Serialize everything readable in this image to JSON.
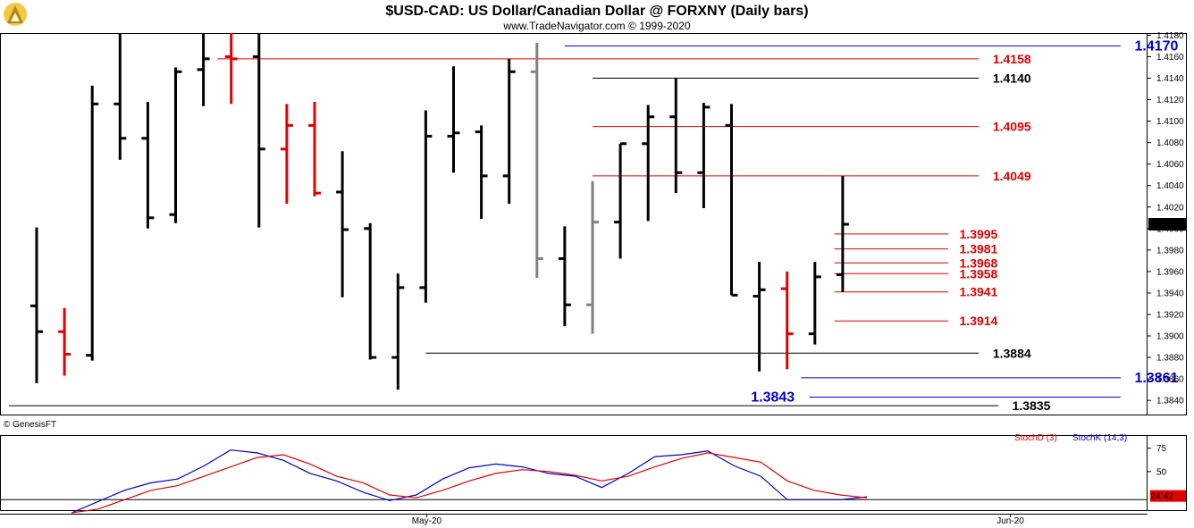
{
  "header": {
    "title": "$USD-CAD:  US Dollar/Canadian Dollar @ FORXNY  (Daily bars)",
    "subtitle": "www.TradeNavigator.com © 1999-2020"
  },
  "copyright": "© GenesisFT",
  "colors": {
    "up": "#000000",
    "down": "#e00000",
    "neutral": "#808080",
    "blue": "#0000cc",
    "red_line": "#e00000",
    "stoch_k": "#0000cc",
    "stoch_d": "#e00000",
    "last_price_bg": "#000000",
    "stoch_value_bg": "#e00000"
  },
  "chart_data": [
    {
      "type": "ohlc",
      "title": "$USD-CAD:  US Dollar/Canadian Dollar @ FORXNY  (Daily bars)",
      "ylim": [
        1.3826,
        1.4182
      ],
      "y_ticks": [
        "1.3840",
        "1.3860",
        "1.3880",
        "1.3900",
        "1.3920",
        "1.3940",
        "1.3960",
        "1.3980",
        "1.4000",
        "1.4020",
        "1.4040",
        "1.4060",
        "1.4080",
        "1.4100",
        "1.4120",
        "1.4140",
        "1.4160",
        "1.4180"
      ],
      "last_price": "1.4004",
      "x_labels": [
        {
          "label": "May-20",
          "index": 14
        },
        {
          "label": "Jun-20",
          "index": 35
        }
      ],
      "bars": [
        {
          "o": 1.3928,
          "h": 1.4001,
          "l": 1.3856,
          "c": 1.3904,
          "color": "black"
        },
        {
          "o": 1.3904,
          "h": 1.3926,
          "l": 1.3863,
          "c": 1.3883,
          "color": "red"
        },
        {
          "o": 1.3882,
          "h": 1.4133,
          "l": 1.3877,
          "c": 1.4116,
          "color": "black"
        },
        {
          "o": 1.4116,
          "h": 1.4182,
          "l": 1.4064,
          "c": 1.4084,
          "color": "black"
        },
        {
          "o": 1.4084,
          "h": 1.4118,
          "l": 1.4,
          "c": 1.401,
          "color": "black"
        },
        {
          "o": 1.4013,
          "h": 1.415,
          "l": 1.4005,
          "c": 1.4146,
          "color": "black"
        },
        {
          "o": 1.4148,
          "h": 1.4182,
          "l": 1.4114,
          "c": 1.4158,
          "color": "black"
        },
        {
          "o": 1.416,
          "h": 1.4182,
          "l": 1.4116,
          "c": 1.4158,
          "color": "red"
        },
        {
          "o": 1.416,
          "h": 1.4182,
          "l": 1.4001,
          "c": 1.4074,
          "color": "black"
        },
        {
          "o": 1.4074,
          "h": 1.4116,
          "l": 1.4023,
          "c": 1.4096,
          "color": "red"
        },
        {
          "o": 1.4096,
          "h": 1.4118,
          "l": 1.403,
          "c": 1.4033,
          "color": "red"
        },
        {
          "o": 1.4034,
          "h": 1.4072,
          "l": 1.3936,
          "c": 1.3999,
          "color": "black"
        },
        {
          "o": 1.4,
          "h": 1.4005,
          "l": 1.3878,
          "c": 1.388,
          "color": "black"
        },
        {
          "o": 1.388,
          "h": 1.3958,
          "l": 1.385,
          "c": 1.3945,
          "color": "black"
        },
        {
          "o": 1.3945,
          "h": 1.411,
          "l": 1.3931,
          "c": 1.4086,
          "color": "black"
        },
        {
          "o": 1.4086,
          "h": 1.4151,
          "l": 1.4052,
          "c": 1.4089,
          "color": "black"
        },
        {
          "o": 1.409,
          "h": 1.4096,
          "l": 1.4009,
          "c": 1.4049,
          "color": "black"
        },
        {
          "o": 1.4049,
          "h": 1.4158,
          "l": 1.4023,
          "c": 1.4146,
          "color": "black"
        },
        {
          "o": 1.4146,
          "h": 1.4173,
          "l": 1.3954,
          "c": 1.3972,
          "color": "gray"
        },
        {
          "o": 1.3972,
          "h": 1.4002,
          "l": 1.3909,
          "c": 1.3929,
          "color": "black"
        },
        {
          "o": 1.3929,
          "h": 1.4044,
          "l": 1.3902,
          "c": 1.4006,
          "color": "gray"
        },
        {
          "o": 1.4006,
          "h": 1.4079,
          "l": 1.3972,
          "c": 1.4079,
          "color": "black"
        },
        {
          "o": 1.4079,
          "h": 1.4115,
          "l": 1.4007,
          "c": 1.4104,
          "color": "black"
        },
        {
          "o": 1.4104,
          "h": 1.414,
          "l": 1.4033,
          "c": 1.4052,
          "color": "black"
        },
        {
          "o": 1.4052,
          "h": 1.4117,
          "l": 1.4019,
          "c": 1.4113,
          "color": "black"
        },
        {
          "o": 1.4096,
          "h": 1.4116,
          "l": 1.3938,
          "c": 1.3938,
          "color": "black"
        },
        {
          "o": 1.3937,
          "h": 1.3969,
          "l": 1.3867,
          "c": 1.3943,
          "color": "black"
        },
        {
          "o": 1.3944,
          "h": 1.396,
          "l": 1.3869,
          "c": 1.3902,
          "color": "red"
        },
        {
          "o": 1.3902,
          "h": 1.3969,
          "l": 1.3892,
          "c": 1.3955,
          "color": "black"
        },
        {
          "o": 1.3957,
          "h": 1.4049,
          "l": 1.3941,
          "c": 1.4004,
          "color": "black"
        }
      ],
      "levels": [
        {
          "value": 1.417,
          "label": "1.4170",
          "color": "blue",
          "x0": 19,
          "x1": 39,
          "label_pos": 39.5,
          "big": true
        },
        {
          "value": 1.4158,
          "label": "1.4158",
          "color": "red",
          "x0": 6.5,
          "x1": 33.9,
          "label_pos": 34.4,
          "big": false
        },
        {
          "value": 1.414,
          "label": "1.4140",
          "color": "black",
          "x0": 20,
          "x1": 33.9,
          "label_pos": 34.4,
          "big": false
        },
        {
          "value": 1.4095,
          "label": "1.4095",
          "color": "red",
          "x0": 20,
          "x1": 33.9,
          "label_pos": 34.4,
          "big": false
        },
        {
          "value": 1.4049,
          "label": "1.4049",
          "color": "red",
          "x0": 20,
          "x1": 33.9,
          "label_pos": 34.4,
          "big": false
        },
        {
          "value": 1.3995,
          "label": "1.3995",
          "color": "red",
          "x0": 28.7,
          "x1": 32.8,
          "label_pos": 33.2,
          "big": false
        },
        {
          "value": 1.3981,
          "label": "1.3981",
          "color": "red",
          "x0": 28.7,
          "x1": 32.8,
          "label_pos": 33.2,
          "big": false
        },
        {
          "value": 1.3968,
          "label": "1.3968",
          "color": "red",
          "x0": 28.7,
          "x1": 32.8,
          "label_pos": 33.2,
          "big": false
        },
        {
          "value": 1.3958,
          "label": "1.3958",
          "color": "red",
          "x0": 28.7,
          "x1": 32.8,
          "label_pos": 33.2,
          "big": false
        },
        {
          "value": 1.3941,
          "label": "1.3941",
          "color": "red",
          "x0": 28.7,
          "x1": 32.8,
          "label_pos": 33.2,
          "big": false
        },
        {
          "value": 1.3914,
          "label": "1.3914",
          "color": "red",
          "x0": 28.7,
          "x1": 32.8,
          "label_pos": 33.2,
          "big": false
        },
        {
          "value": 1.3884,
          "label": "1.3884",
          "color": "black",
          "x0": 14,
          "x1": 33.9,
          "label_pos": 34.4,
          "big": false
        },
        {
          "value": 1.3861,
          "label": "1.3861",
          "color": "blue",
          "x0": 27.5,
          "x1": 39,
          "label_pos": 39.5,
          "big": true
        },
        {
          "value": 1.3843,
          "label": "1.3843",
          "color": "blue",
          "x0": 27.8,
          "x1": 39,
          "label_pos": 25.7,
          "big": true
        },
        {
          "value": 1.3835,
          "label": "1.3835",
          "color": "black",
          "x0": -1,
          "x1": 34.6,
          "label_pos": 35.1,
          "big": false
        }
      ]
    },
    {
      "type": "line",
      "title": "",
      "legend": [
        "StochD (3)",
        "StochK (14,3)"
      ],
      "y_ticks": [
        "75",
        "50"
      ],
      "ylim": [
        5,
        88
      ],
      "series": [
        {
          "name": "StochK (14,3)",
          "color": "blue",
          "values": [
            2,
            18,
            30,
            38,
            42,
            56,
            73,
            70,
            62,
            48,
            40,
            28,
            19,
            25,
            42,
            54,
            58,
            55,
            48,
            45,
            33,
            48,
            66,
            68,
            72,
            56,
            45,
            20,
            20,
            20,
            23
          ]
        },
        {
          "name": "StochD (3)",
          "color": "red",
          "values": [
            1,
            10,
            20,
            30,
            35,
            45,
            55,
            65,
            68,
            58,
            45,
            38,
            25,
            22,
            30,
            40,
            48,
            52,
            50,
            46,
            40,
            45,
            55,
            64,
            70,
            65,
            60,
            40,
            30,
            25,
            22
          ]
        }
      ],
      "last_value": "24.42"
    }
  ]
}
